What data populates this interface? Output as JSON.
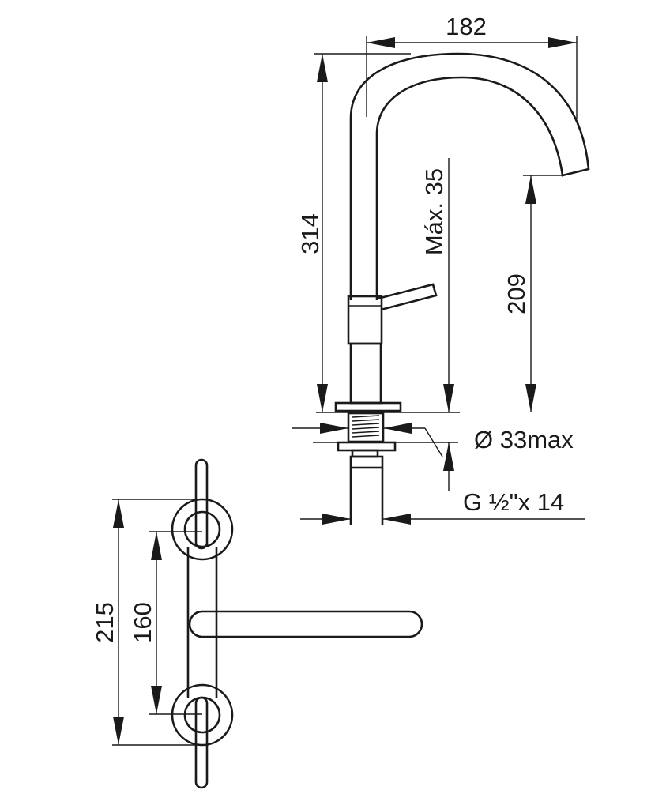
{
  "dimensions": {
    "spout_reach": "182",
    "total_height": "314",
    "max_deck_thickness": "Máx. 35",
    "spout_height": "209",
    "hole_diameter": "Ø 33max",
    "thread": "G ½\"x 14",
    "handle_outer_span": "215",
    "handle_inner_span": "160"
  }
}
